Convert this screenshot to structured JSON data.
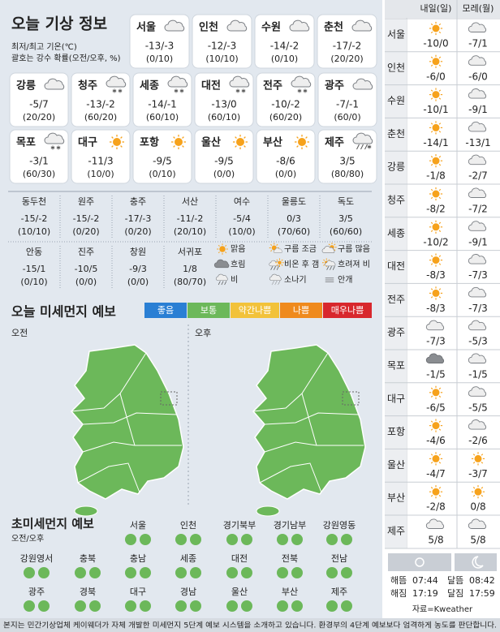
{
  "header": {
    "title": "오늘 기상 정보",
    "notes": [
      "최저/최고 기온(℃)",
      "괄호는 강수 확률(오전/오후, %)"
    ]
  },
  "cards": [
    {
      "name": "서울",
      "icon": "cloud",
      "temp": "-13/-3",
      "pop": "(0/10)"
    },
    {
      "name": "인천",
      "icon": "cloud",
      "temp": "-12/-3",
      "pop": "(10/10)"
    },
    {
      "name": "수원",
      "icon": "cloud",
      "temp": "-14/-2",
      "pop": "(0/10)"
    },
    {
      "name": "춘천",
      "icon": "cloud",
      "temp": "-17/-2",
      "pop": "(20/20)"
    },
    {
      "name": "강릉",
      "icon": "cloud",
      "temp": "-5/7",
      "pop": "(20/20)"
    },
    {
      "name": "청주",
      "icon": "snow",
      "temp": "-13/-2",
      "pop": "(60/20)"
    },
    {
      "name": "세종",
      "icon": "snow",
      "temp": "-14/-1",
      "pop": "(60/10)"
    },
    {
      "name": "대전",
      "icon": "snow",
      "temp": "-13/0",
      "pop": "(60/10)"
    },
    {
      "name": "전주",
      "icon": "snow",
      "temp": "-10/-2",
      "pop": "(60/20)"
    },
    {
      "name": "광주",
      "icon": "cloud",
      "temp": "-7/-1",
      "pop": "(60/0)"
    },
    {
      "name": "목포",
      "icon": "snow",
      "temp": "-3/1",
      "pop": "(60/30)"
    },
    {
      "name": "대구",
      "icon": "sun",
      "temp": "-11/3",
      "pop": "(10/0)"
    },
    {
      "name": "포항",
      "icon": "sun",
      "temp": "-9/5",
      "pop": "(0/10)"
    },
    {
      "name": "울산",
      "icon": "sun",
      "temp": "-9/5",
      "pop": "(0/0)"
    },
    {
      "name": "부산",
      "icon": "sun",
      "temp": "-8/6",
      "pop": "(0/0)"
    },
    {
      "name": "제주",
      "icon": "rain-snow",
      "temp": "3/5",
      "pop": "(80/80)"
    }
  ],
  "stations": [
    {
      "name": "동두천",
      "temp": "-15/-2",
      "pop": "(10/10)"
    },
    {
      "name": "원주",
      "temp": "-15/-2",
      "pop": "(0/20)"
    },
    {
      "name": "충주",
      "temp": "-17/-3",
      "pop": "(0/20)"
    },
    {
      "name": "서산",
      "temp": "-11/-2",
      "pop": "(20/10)"
    },
    {
      "name": "여수",
      "temp": "-5/4",
      "pop": "(10/0)"
    },
    {
      "name": "울릉도",
      "temp": "0/3",
      "pop": "(70/60)"
    },
    {
      "name": "독도",
      "temp": "3/5",
      "pop": "(60/60)"
    },
    {
      "name": "안동",
      "temp": "-15/1",
      "pop": "(0/10)"
    },
    {
      "name": "진주",
      "temp": "-10/5",
      "pop": "(0/0)"
    },
    {
      "name": "창원",
      "temp": "-9/3",
      "pop": "(0/0)"
    },
    {
      "name": "서귀포",
      "temp": "1/8",
      "pop": "(80/70)"
    }
  ],
  "legend": [
    {
      "label": "맑음",
      "icon": "sun"
    },
    {
      "label": "구름 조금",
      "icon": "sun-cloud"
    },
    {
      "label": "구름 많음",
      "icon": "cloud-sun"
    },
    {
      "label": "흐림",
      "icon": "dark-cloud"
    },
    {
      "label": "비온 후 갬",
      "icon": "rain-sun"
    },
    {
      "label": "흐려져 비",
      "icon": "sun-rain"
    },
    {
      "label": "비",
      "icon": "rain"
    },
    {
      "label": "소나기",
      "icon": "shower"
    },
    {
      "label": "안개",
      "icon": "fog"
    }
  ],
  "dust": {
    "title": "오늘 미세먼지 예보",
    "grades": [
      {
        "label": "좋음",
        "color": "#2a7fd4"
      },
      {
        "label": "보통",
        "color": "#6cb85a"
      },
      {
        "label": "약간나쁨",
        "color": "#f2c23a"
      },
      {
        "label": "나쁨",
        "color": "#ef8a1d"
      },
      {
        "label": "매우나쁨",
        "color": "#d8272d"
      }
    ],
    "am_label": "오전",
    "pm_label": "오후",
    "am_grade": "보통",
    "pm_grade": "보통"
  },
  "fine_dust": {
    "title": "초미세먼지 예보",
    "subtitle": "오전/오후",
    "regions": [
      {
        "name": "서울",
        "am": "보통",
        "pm": "보통"
      },
      {
        "name": "인천",
        "am": "보통",
        "pm": "보통"
      },
      {
        "name": "경기북부",
        "am": "보통",
        "pm": "보통"
      },
      {
        "name": "경기남부",
        "am": "보통",
        "pm": "보통"
      },
      {
        "name": "강원영동",
        "am": "보통",
        "pm": "보통"
      },
      {
        "name": "강원영서",
        "am": "보통",
        "pm": "보통"
      },
      {
        "name": "충북",
        "am": "보통",
        "pm": "보통"
      },
      {
        "name": "충남",
        "am": "보통",
        "pm": "보통"
      },
      {
        "name": "세종",
        "am": "보통",
        "pm": "보통"
      },
      {
        "name": "대전",
        "am": "보통",
        "pm": "보통"
      },
      {
        "name": "전북",
        "am": "보통",
        "pm": "보통"
      },
      {
        "name": "전남",
        "am": "보통",
        "pm": "보통"
      },
      {
        "name": "광주",
        "am": "보통",
        "pm": "보통"
      },
      {
        "name": "경북",
        "am": "보통",
        "pm": "보통"
      },
      {
        "name": "대구",
        "am": "보통",
        "pm": "보통"
      },
      {
        "name": "경남",
        "am": "보통",
        "pm": "보통"
      },
      {
        "name": "울산",
        "am": "보통",
        "pm": "보통"
      },
      {
        "name": "부산",
        "am": "보통",
        "pm": "보통"
      },
      {
        "name": "제주",
        "am": "보통",
        "pm": "보통"
      }
    ]
  },
  "forecast": {
    "days": [
      "내일(일)",
      "모레(월)"
    ],
    "rows": [
      {
        "name": "서울",
        "days": [
          {
            "icon": "sun",
            "temp": "-10/0"
          },
          {
            "icon": "cloud",
            "temp": "-7/1"
          }
        ]
      },
      {
        "name": "인천",
        "days": [
          {
            "icon": "sun",
            "temp": "-6/0"
          },
          {
            "icon": "cloud",
            "temp": "-6/0"
          }
        ]
      },
      {
        "name": "수원",
        "days": [
          {
            "icon": "sun",
            "temp": "-10/1"
          },
          {
            "icon": "cloud",
            "temp": "-9/1"
          }
        ]
      },
      {
        "name": "춘천",
        "days": [
          {
            "icon": "sun",
            "temp": "-14/1"
          },
          {
            "icon": "cloud",
            "temp": "-13/1"
          }
        ]
      },
      {
        "name": "강릉",
        "days": [
          {
            "icon": "sun",
            "temp": "-1/8"
          },
          {
            "icon": "cloud",
            "temp": "-2/7"
          }
        ]
      },
      {
        "name": "청주",
        "days": [
          {
            "icon": "sun",
            "temp": "-8/2"
          },
          {
            "icon": "cloud",
            "temp": "-7/2"
          }
        ]
      },
      {
        "name": "세종",
        "days": [
          {
            "icon": "sun",
            "temp": "-10/2"
          },
          {
            "icon": "cloud",
            "temp": "-9/1"
          }
        ]
      },
      {
        "name": "대전",
        "days": [
          {
            "icon": "sun",
            "temp": "-8/3"
          },
          {
            "icon": "cloud",
            "temp": "-7/3"
          }
        ]
      },
      {
        "name": "전주",
        "days": [
          {
            "icon": "sun",
            "temp": "-8/3"
          },
          {
            "icon": "cloud",
            "temp": "-7/3"
          }
        ]
      },
      {
        "name": "광주",
        "days": [
          {
            "icon": "cloud",
            "temp": "-7/3"
          },
          {
            "icon": "cloud",
            "temp": "-5/3"
          }
        ]
      },
      {
        "name": "목포",
        "days": [
          {
            "icon": "dark-cloud",
            "temp": "-1/5"
          },
          {
            "icon": "cloud",
            "temp": "-1/5"
          }
        ]
      },
      {
        "name": "대구",
        "days": [
          {
            "icon": "sun",
            "temp": "-6/5"
          },
          {
            "icon": "cloud",
            "temp": "-5/5"
          }
        ]
      },
      {
        "name": "포항",
        "days": [
          {
            "icon": "sun",
            "temp": "-4/6"
          },
          {
            "icon": "cloud",
            "temp": "-2/6"
          }
        ]
      },
      {
        "name": "울산",
        "days": [
          {
            "icon": "sun",
            "temp": "-4/7"
          },
          {
            "icon": "sun",
            "temp": "-3/7"
          }
        ]
      },
      {
        "name": "부산",
        "days": [
          {
            "icon": "sun",
            "temp": "-2/8"
          },
          {
            "icon": "sun",
            "temp": "0/8"
          }
        ]
      },
      {
        "name": "제주",
        "days": [
          {
            "icon": "cloud",
            "temp": "5/8"
          },
          {
            "icon": "cloud",
            "temp": "5/8"
          }
        ]
      }
    ]
  },
  "sun_moon": [
    {
      "label": "해뜸",
      "time": "07:44"
    },
    {
      "label": "해짐",
      "time": "17:19"
    },
    {
      "label": "달뜸",
      "time": "08:42"
    },
    {
      "label": "달짐",
      "time": "17:59"
    }
  ],
  "source": "자료=Kweather",
  "footer": "본지는 민간기상업체 케이웨더가 자체 개발한 미세먼지 5단계 예보 시스템을 소개하고 있습니다. 환경부의 4단계 예보보다 엄격하게 농도를 판단합니다."
}
